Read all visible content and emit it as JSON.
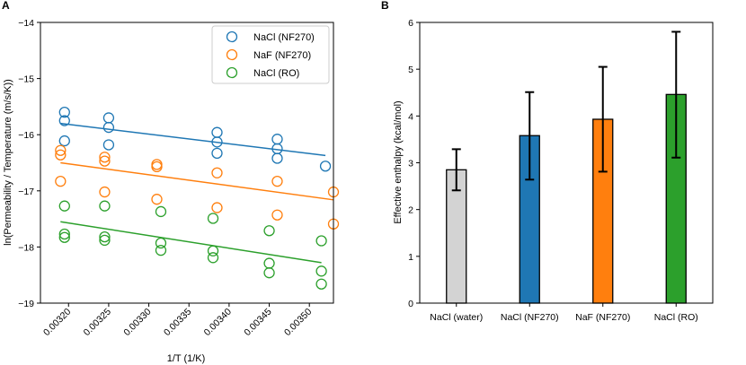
{
  "panels": {
    "a": {
      "letter": "A"
    },
    "b": {
      "letter": "B"
    }
  },
  "colors": {
    "nacl_nf270": "#1f77b4",
    "naf_nf270": "#ff7f0e",
    "nacl_ro": "#2ca02c",
    "nacl_water": "#d3d3d3"
  },
  "chart_data": [
    {
      "type": "scatter",
      "panel": "A",
      "title": "",
      "xlabel": "1/T (1/K)",
      "ylabel": "ln(Permeability / Temperature (m/s/K))",
      "xlim": [
        0.003165,
        0.00353
      ],
      "ylim": [
        -19,
        -14
      ],
      "xticks": [
        0.0032,
        0.00325,
        0.0033,
        0.00335,
        0.0034,
        0.00345,
        0.0035
      ],
      "xtick_labels": [
        "0.00320",
        "0.00325",
        "0.00330",
        "0.00335",
        "0.00340",
        "0.00345",
        "0.00350"
      ],
      "yticks": [
        -19,
        -18,
        -17,
        -16,
        -15,
        -14
      ],
      "ytick_labels": [
        "−19",
        "−18",
        "−17",
        "−16",
        "−15",
        "−14"
      ],
      "legend_position": "top-right",
      "series": [
        {
          "name": "NaCl (NF270)",
          "color_key": "nacl_nf270",
          "points": [
            [
              0.003195,
              -15.6
            ],
            [
              0.003195,
              -15.75
            ],
            [
              0.003195,
              -16.11
            ],
            [
              0.00325,
              -15.7
            ],
            [
              0.00325,
              -15.87
            ],
            [
              0.00325,
              -16.18
            ],
            [
              0.003385,
              -15.96
            ],
            [
              0.003385,
              -16.13
            ],
            [
              0.003385,
              -16.33
            ],
            [
              0.00346,
              -16.08
            ],
            [
              0.00346,
              -16.25
            ],
            [
              0.00346,
              -16.42
            ],
            [
              0.00352,
              -16.56
            ]
          ],
          "fit": {
            "x": [
              0.00319,
              0.00352
            ],
            "y": [
              -15.8,
              -16.37
            ]
          }
        },
        {
          "name": "NaF (NF270)",
          "color_key": "naf_nf270",
          "points": [
            [
              0.00319,
              -16.28
            ],
            [
              0.00319,
              -16.36
            ],
            [
              0.00319,
              -16.83
            ],
            [
              0.003245,
              -16.4
            ],
            [
              0.003245,
              -16.47
            ],
            [
              0.003245,
              -17.02
            ],
            [
              0.00331,
              -16.53
            ],
            [
              0.00331,
              -16.57
            ],
            [
              0.00331,
              -17.15
            ],
            [
              0.003385,
              -16.68
            ],
            [
              0.003385,
              -17.3
            ],
            [
              0.00346,
              -16.83
            ],
            [
              0.00346,
              -17.43
            ],
            [
              0.00353,
              -17.02
            ],
            [
              0.00353,
              -17.59
            ]
          ],
          "fit": {
            "x": [
              0.00319,
              0.00353
            ],
            "y": [
              -16.5,
              -17.16
            ]
          }
        },
        {
          "name": "NaCl (RO)",
          "color_key": "nacl_ro",
          "points": [
            [
              0.003195,
              -17.27
            ],
            [
              0.003195,
              -17.77
            ],
            [
              0.003195,
              -17.83
            ],
            [
              0.003245,
              -17.27
            ],
            [
              0.003245,
              -17.82
            ],
            [
              0.003245,
              -17.88
            ],
            [
              0.003315,
              -17.37
            ],
            [
              0.003315,
              -17.93
            ],
            [
              0.003315,
              -18.06
            ],
            [
              0.00338,
              -17.49
            ],
            [
              0.00338,
              -18.07
            ],
            [
              0.00338,
              -18.19
            ],
            [
              0.00345,
              -17.71
            ],
            [
              0.00345,
              -18.29
            ],
            [
              0.00345,
              -18.46
            ],
            [
              0.003515,
              -17.89
            ],
            [
              0.003515,
              -18.43
            ],
            [
              0.003515,
              -18.66
            ]
          ],
          "fit": {
            "x": [
              0.00319,
              0.003515
            ],
            "y": [
              -17.55,
              -18.28
            ]
          }
        }
      ]
    },
    {
      "type": "bar",
      "panel": "B",
      "title": "",
      "xlabel": "",
      "ylabel": "Effective enthalpy (kcal/mol)",
      "ylim": [
        0,
        6
      ],
      "yticks": [
        0,
        1,
        2,
        3,
        4,
        5,
        6
      ],
      "ytick_labels": [
        "0",
        "1",
        "2",
        "3",
        "4",
        "5",
        "6"
      ],
      "categories": [
        "NaCl (water)",
        "NaCl (NF270)",
        "NaF (NF270)",
        "NaCl (RO)"
      ],
      "values": [
        2.85,
        3.58,
        3.93,
        4.46
      ],
      "errors": [
        [
          2.41,
          3.29
        ],
        [
          2.64,
          4.51
        ],
        [
          2.81,
          5.05
        ],
        [
          3.11,
          5.8
        ]
      ],
      "color_keys": [
        "nacl_water",
        "nacl_nf270",
        "naf_nf270",
        "nacl_ro"
      ]
    }
  ]
}
